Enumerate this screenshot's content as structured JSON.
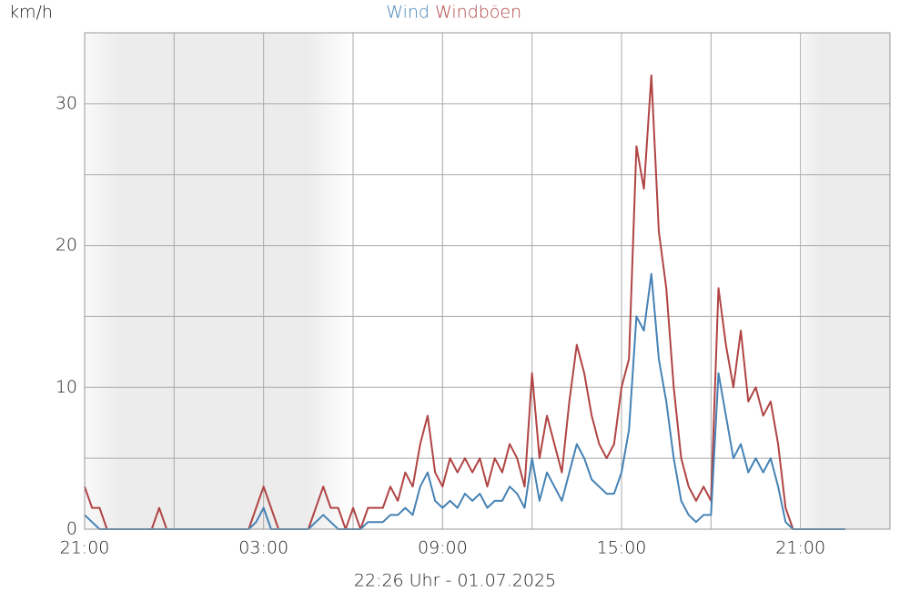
{
  "chart_data": {
    "type": "line",
    "y_label": "km/h",
    "subtitle": "22:26 Uhr - 01.07.2025",
    "x": [
      0,
      0.25,
      0.5,
      0.75,
      1,
      1.25,
      1.5,
      1.75,
      2,
      2.25,
      2.5,
      2.75,
      3,
      3.25,
      3.5,
      3.75,
      4,
      4.25,
      4.5,
      4.75,
      5,
      5.25,
      5.5,
      5.75,
      6,
      6.25,
      6.5,
      6.75,
      7,
      7.25,
      7.5,
      7.75,
      8,
      8.25,
      8.5,
      8.75,
      9,
      9.25,
      9.5,
      9.75,
      10,
      10.25,
      10.5,
      10.75,
      11,
      11.25,
      11.5,
      11.75,
      12,
      12.25,
      12.5,
      12.75,
      13,
      13.25,
      13.5,
      13.75,
      14,
      14.25,
      14.5,
      14.75,
      15,
      15.25,
      15.5,
      15.75,
      16,
      16.25,
      16.5,
      16.75,
      17,
      17.25,
      17.5,
      17.75,
      18,
      18.25,
      18.5,
      18.75,
      19,
      19.25,
      19.5,
      19.75,
      20,
      20.25,
      20.5,
      20.75,
      21,
      21.25,
      21.5,
      21.75,
      22,
      22.25,
      22.5,
      22.75,
      23,
      23.25,
      23.5,
      23.75,
      24,
      24.25,
      24.5,
      24.75,
      25,
      25.25,
      25.5
    ],
    "series": [
      {
        "name": "Windböen",
        "color": "#b04444",
        "values": [
          3,
          1.5,
          1.5,
          0,
          0,
          0,
          0,
          0,
          0,
          0,
          1.5,
          0,
          0,
          0,
          0,
          0,
          0,
          0,
          0,
          0,
          0,
          0,
          0,
          1.5,
          3,
          1.5,
          0,
          0,
          0,
          0,
          0,
          1.5,
          3,
          1.5,
          1.5,
          0,
          1.5,
          0,
          1.5,
          1.5,
          1.5,
          3,
          2,
          4,
          3,
          6,
          8,
          4,
          3,
          5,
          4,
          5,
          4,
          5,
          3,
          5,
          4,
          6,
          5,
          3,
          11,
          5,
          8,
          6,
          4,
          9,
          13,
          11,
          8,
          6,
          5,
          6,
          10,
          12,
          27,
          24,
          32,
          21,
          17,
          10,
          5,
          3,
          2,
          3,
          2,
          17,
          13,
          10,
          14,
          9,
          10,
          8,
          9,
          6,
          1.5,
          0,
          0,
          0,
          0,
          0,
          0,
          0,
          0
        ]
      },
      {
        "name": "Wind",
        "color": "#4682b4",
        "values": [
          1,
          0.5,
          0,
          0,
          0,
          0,
          0,
          0,
          0,
          0,
          0,
          0,
          0,
          0,
          0,
          0,
          0,
          0,
          0,
          0,
          0,
          0,
          0,
          0.5,
          1.5,
          0,
          0,
          0,
          0,
          0,
          0,
          0.5,
          1,
          0.5,
          0,
          0,
          0,
          0,
          0.5,
          0.5,
          0.5,
          1,
          1,
          1.5,
          1,
          3,
          4,
          2,
          1.5,
          2,
          1.5,
          2.5,
          2,
          2.5,
          1.5,
          2,
          2,
          3,
          2.5,
          1.5,
          5,
          2,
          4,
          3,
          2,
          4,
          6,
          5,
          3.5,
          3,
          2.5,
          2.5,
          4,
          7,
          15,
          14,
          18,
          12,
          9,
          5,
          2,
          1,
          0.5,
          1,
          1,
          11,
          8,
          5,
          6,
          4,
          5,
          4,
          5,
          3,
          0.5,
          0,
          0,
          0,
          0,
          0,
          0,
          0,
          0
        ]
      }
    ],
    "xlim": [
      0,
      27
    ],
    "xticks": [
      {
        "value": 0,
        "label": "21:00"
      },
      {
        "value": 6,
        "label": "03:00"
      },
      {
        "value": 12,
        "label": "09:00"
      },
      {
        "value": 18,
        "label": "15:00"
      },
      {
        "value": 24,
        "label": "21:00"
      }
    ],
    "x_minor_grid": [
      3,
      9,
      15,
      21
    ],
    "ylim": [
      0,
      35
    ],
    "yticks": [
      0,
      10,
      20,
      30
    ],
    "y_minor_grid": [
      5,
      15,
      25
    ],
    "grid": true
  }
}
